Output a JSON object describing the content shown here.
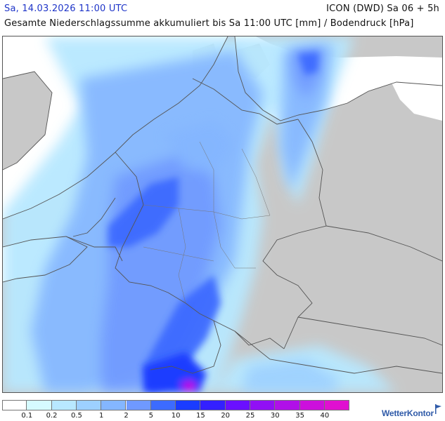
{
  "header": {
    "date": "Sa, 14.03.2026 11:00 UTC",
    "model": "ICON (DWD) Sa 06 + 5h",
    "description": "Gesamte Niederschlagssumme akkumuliert bis Sa 11:00 UTC [mm] / Bodendruck [hPa]"
  },
  "map": {
    "land_color": "#c8c8c8",
    "sea_color": "#ffffff",
    "border_color": "#555555"
  },
  "legend": {
    "items": [
      {
        "label": "",
        "color": "#ffffff"
      },
      {
        "label": "0.1",
        "color": "#d6fbff"
      },
      {
        "label": "0.2",
        "color": "#b8e8ff"
      },
      {
        "label": "0.5",
        "color": "#9dd0ff"
      },
      {
        "label": "1",
        "color": "#84b6ff"
      },
      {
        "label": "2",
        "color": "#6f99ff"
      },
      {
        "label": "5",
        "color": "#3c6bff"
      },
      {
        "label": "10",
        "color": "#1a3cff"
      },
      {
        "label": "15",
        "color": "#3320ff"
      },
      {
        "label": "20",
        "color": "#6a10ff"
      },
      {
        "label": "25",
        "color": "#9110f5"
      },
      {
        "label": "30",
        "color": "#b010e8"
      },
      {
        "label": "35",
        "color": "#cc10dc"
      },
      {
        "label": "40",
        "color": "#e010d0"
      }
    ]
  },
  "brand": {
    "name": "WetterKontor"
  }
}
